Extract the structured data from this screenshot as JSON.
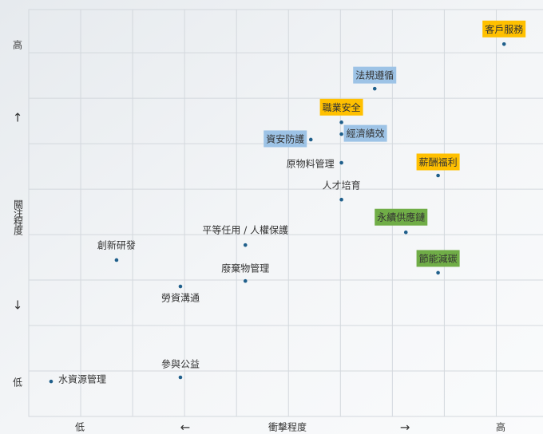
{
  "chart_data": {
    "type": "scatter",
    "x_axis_labels": [
      "低",
      "←",
      "衝擊程度",
      "→",
      "高"
    ],
    "y_axis_labels": [
      "高",
      "↑",
      "關注程度",
      "↓",
      "低"
    ],
    "xlim": [
      0,
      9.9
    ],
    "ylim": [
      0,
      8.95
    ],
    "xticks": [
      1,
      2,
      3,
      4,
      5,
      6,
      7,
      8,
      9
    ],
    "yticks": [
      1,
      2,
      3,
      4,
      5,
      6,
      7,
      8
    ],
    "grid": true,
    "marker_color": "#1f5f8b",
    "labels": [
      "客戶服務",
      "法規遵循",
      "職業安全",
      "經濟績效",
      "資安防護",
      "原物料管理",
      "薪酬福利",
      "人才培育",
      "永續供應鏈",
      "平等任用 / 人權保護",
      "創新研發",
      "節能減碳",
      "廢棄物管理",
      "勞資溝通",
      "參與公益",
      "水資源管理"
    ],
    "x": [
      9.15,
      6.66,
      6.02,
      6.02,
      5.43,
      6.02,
      7.88,
      6.02,
      7.26,
      4.17,
      1.69,
      7.88,
      4.17,
      2.92,
      2.92,
      0.43
    ],
    "y": [
      8.19,
      7.21,
      6.47,
      6.21,
      6.09,
      5.58,
      5.3,
      4.77,
      4.05,
      3.77,
      3.44,
      3.16,
      2.98,
      2.86,
      0.86,
      0.77
    ],
    "label_colors": [
      "#ffc000",
      "#9dc3e6",
      "#ffc000",
      "#9dc3e6",
      "#9dc3e6",
      null,
      "#ffc000",
      null,
      "#70ad47",
      null,
      null,
      "#70ad47",
      null,
      null,
      null,
      null
    ]
  }
}
